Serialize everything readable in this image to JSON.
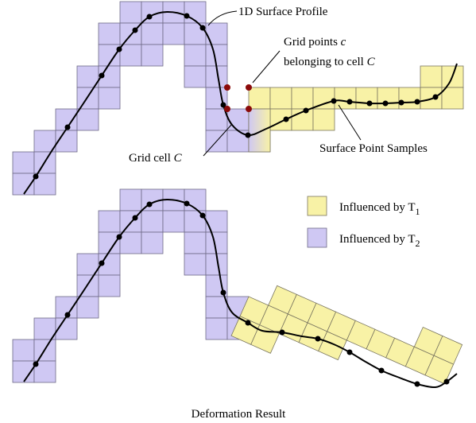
{
  "labels": {
    "surface_profile": "1D Surface Profile",
    "grid_points": {
      "text": "Grid points",
      "var": "c"
    },
    "belonging": {
      "text": "belonging to cell",
      "var": "C"
    },
    "samples": "Surface Point Samples",
    "grid_cell": {
      "text": "Grid cell",
      "var": "C"
    },
    "deformation": "Deformation Result"
  },
  "legend": [
    {
      "text": "Influenced by T",
      "sub": "1"
    },
    {
      "text": "Influenced by T",
      "sub": "2"
    }
  ]
}
